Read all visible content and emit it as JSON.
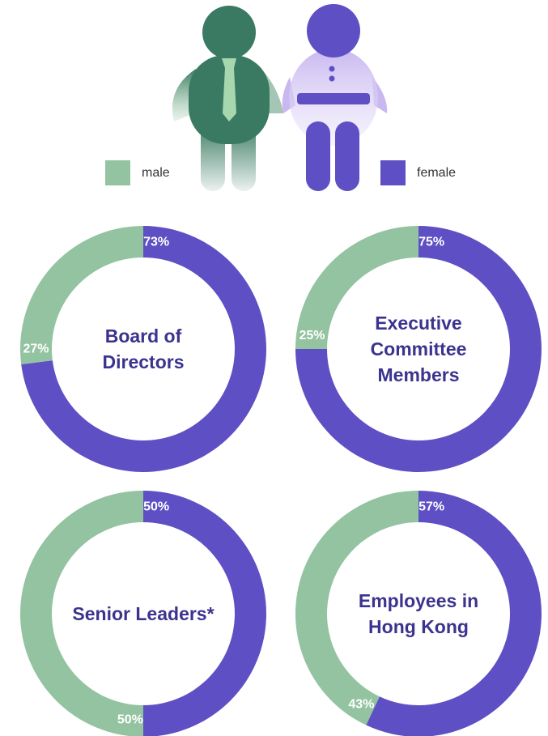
{
  "legend": [
    {
      "name": "male",
      "color": "#93c3a0"
    },
    {
      "name": "female",
      "color": "#5f4fc4"
    }
  ],
  "chart_data": [
    {
      "type": "donut",
      "title": "Board of Directors",
      "values": [
        27,
        73
      ],
      "value_labels": [
        "27%",
        "73%"
      ]
    },
    {
      "type": "donut",
      "title": "Executive Committee Members",
      "values": [
        25,
        75
      ],
      "value_labels": [
        "25%",
        "75%"
      ]
    },
    {
      "type": "donut",
      "title": "Senior Leaders*",
      "values": [
        50,
        50
      ],
      "value_labels": [
        "50%",
        "50%"
      ]
    },
    {
      "type": "donut",
      "title": "Employees in Hong Kong",
      "values": [
        43,
        57
      ],
      "value_labels": [
        "43%",
        "57%"
      ]
    }
  ]
}
